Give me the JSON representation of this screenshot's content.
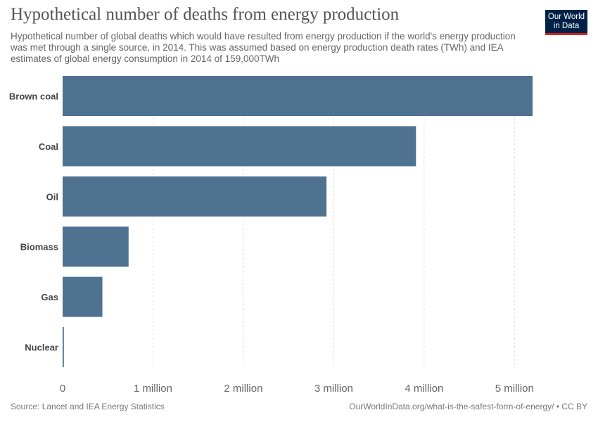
{
  "header": {
    "title": "Hypothetical number of deaths from energy production",
    "subtitle": "Hypothetical number of global deaths which would have resulted from energy production if the world's energy production was met through a single source, in 2014. This was assumed based on energy production death rates (TWh) and IEA estimates of global energy consumption in 2014 of 159,000TWh"
  },
  "logo": {
    "line1": "Our World",
    "line2": "in Data"
  },
  "footer": {
    "source": "Source: Lancet and IEA Energy Statistics",
    "url": "OurWorldInData.org/what-is-the-safest-form-of-energy/ • CC BY"
  },
  "chart_data": {
    "type": "bar",
    "orientation": "horizontal",
    "categories": [
      "Brown coal",
      "Coal",
      "Oil",
      "Biomass",
      "Gas",
      "Nuclear"
    ],
    "values": [
      5200000,
      3910000,
      2920000,
      730000,
      440000,
      14000
    ],
    "xlim": [
      0,
      5200000
    ],
    "ticks": [
      0,
      1000000,
      2000000,
      3000000,
      4000000,
      5000000
    ],
    "tick_labels": [
      "0",
      "1 million",
      "2 million",
      "3 million",
      "4 million",
      "5 million"
    ],
    "bar_color": "#4e7290",
    "grid": true
  }
}
